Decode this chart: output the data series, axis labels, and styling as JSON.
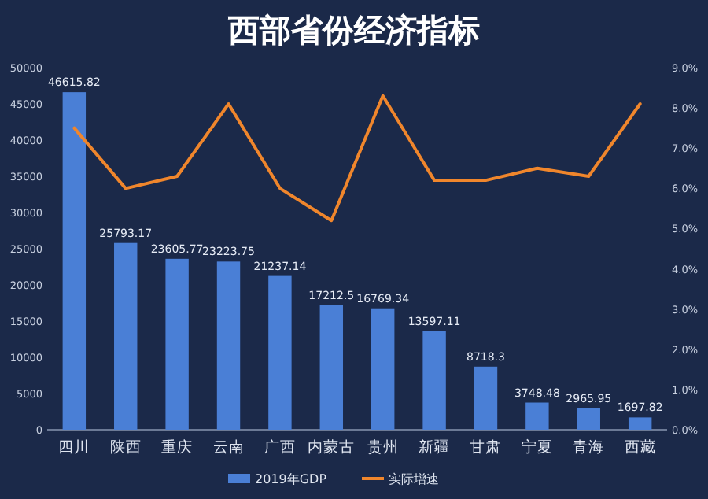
{
  "chart_data": {
    "type": "bar",
    "title": "西部省份经济指标",
    "categories": [
      "四川",
      "陕西",
      "重庆",
      "云南",
      "广西",
      "内蒙古",
      "贵州",
      "新疆",
      "甘肃",
      "宁夏",
      "青海",
      "西藏"
    ],
    "series": [
      {
        "name": "2019年GDP",
        "color": "#4a7fd6",
        "values": [
          46615.82,
          25793.17,
          23605.77,
          23223.75,
          21237.14,
          17212.5,
          16769.34,
          13597.11,
          8718.3,
          3748.48,
          2965.95,
          1697.82
        ],
        "value_labels": [
          "46615.82",
          "25793.17",
          "23605.77",
          "23223.75",
          "21237.14",
          "17212.5",
          "16769.34",
          "13597.11",
          "8718.3",
          "3748.48",
          "2965.95",
          "1697.82"
        ]
      },
      {
        "name": "实际增速",
        "type": "line",
        "axis": "y2",
        "color": "#f0862c",
        "values": [
          7.5,
          6.0,
          6.3,
          8.1,
          6.0,
          5.2,
          8.3,
          6.2,
          6.2,
          6.5,
          6.3,
          8.1
        ]
      }
    ],
    "ylim": [
      0,
      50000
    ],
    "yticks": [
      0,
      5000,
      10000,
      15000,
      20000,
      25000,
      30000,
      35000,
      40000,
      45000,
      50000
    ],
    "y2lim": [
      0,
      9
    ],
    "y2ticks": [
      {
        "value": 0,
        "label": "0.0%"
      },
      {
        "value": 1,
        "label": "1.0%"
      },
      {
        "value": 2,
        "label": "2.0%"
      },
      {
        "value": 3,
        "label": "3.0%"
      },
      {
        "value": 4,
        "label": "4.0%"
      },
      {
        "value": 5,
        "label": "5.0%"
      },
      {
        "value": 6,
        "label": "6.0%"
      },
      {
        "value": 7,
        "label": "7.0%"
      },
      {
        "value": 8,
        "label": "8.0%"
      },
      {
        "value": 9,
        "label": "9.0%"
      }
    ],
    "legend": "bottom",
    "marker": "none",
    "line_style": "solid"
  }
}
